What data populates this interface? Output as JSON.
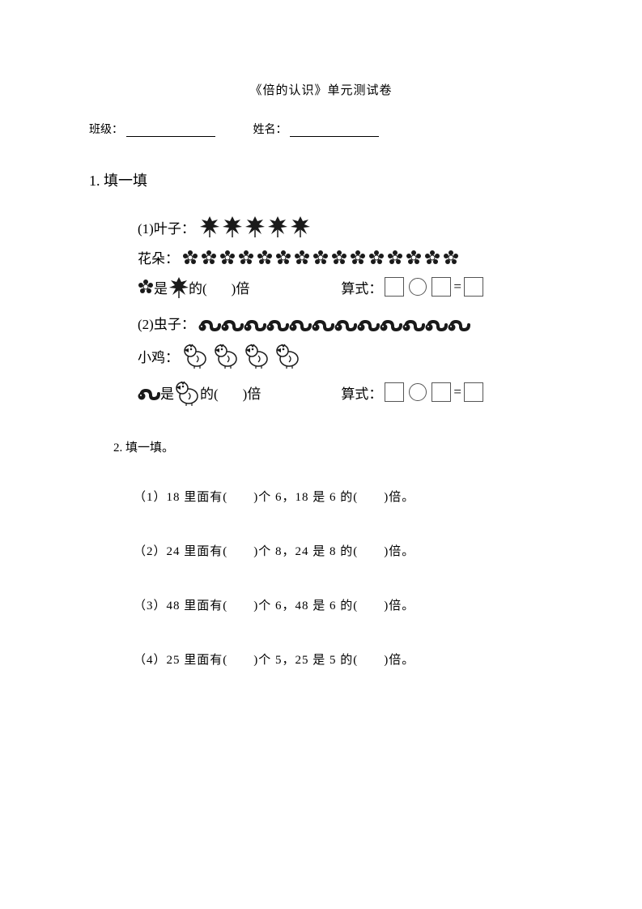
{
  "title": "《倍的认识》单元测试卷",
  "header": {
    "class_label": "班级：",
    "name_label": "姓名："
  },
  "q1": {
    "heading": "1. 填一填",
    "part1": {
      "leaf_label": "(1)叶子：",
      "leaf_count": 5,
      "flower_label": "花朵：",
      "flower_count": 15,
      "relation_mid": "的(",
      "relation_end": ")倍",
      "formula_label": "算式："
    },
    "part2": {
      "worm_label": "(2)虫子：",
      "worm_count": 12,
      "chick_label": "小鸡：",
      "chick_count": 4,
      "relation_is": "是",
      "relation_mid": "的(",
      "relation_end": ")倍",
      "formula_label": "算式："
    },
    "colors": {
      "ink": "#1a1a1a",
      "box_border": "#555555"
    }
  },
  "q2": {
    "heading": "2. 填一填。",
    "items": [
      "（1）18 里面有(　　)个 6，18 是 6 的(　　)倍。",
      "（2）24 里面有(　　)个 8，24 是 8 的(　　)倍。",
      "（3）48 里面有(　　)个 6，48 是 6 的(　　)倍。",
      "（4）25 里面有(　　)个 5，25 是 5 的(　　)倍。"
    ]
  },
  "equals": "="
}
